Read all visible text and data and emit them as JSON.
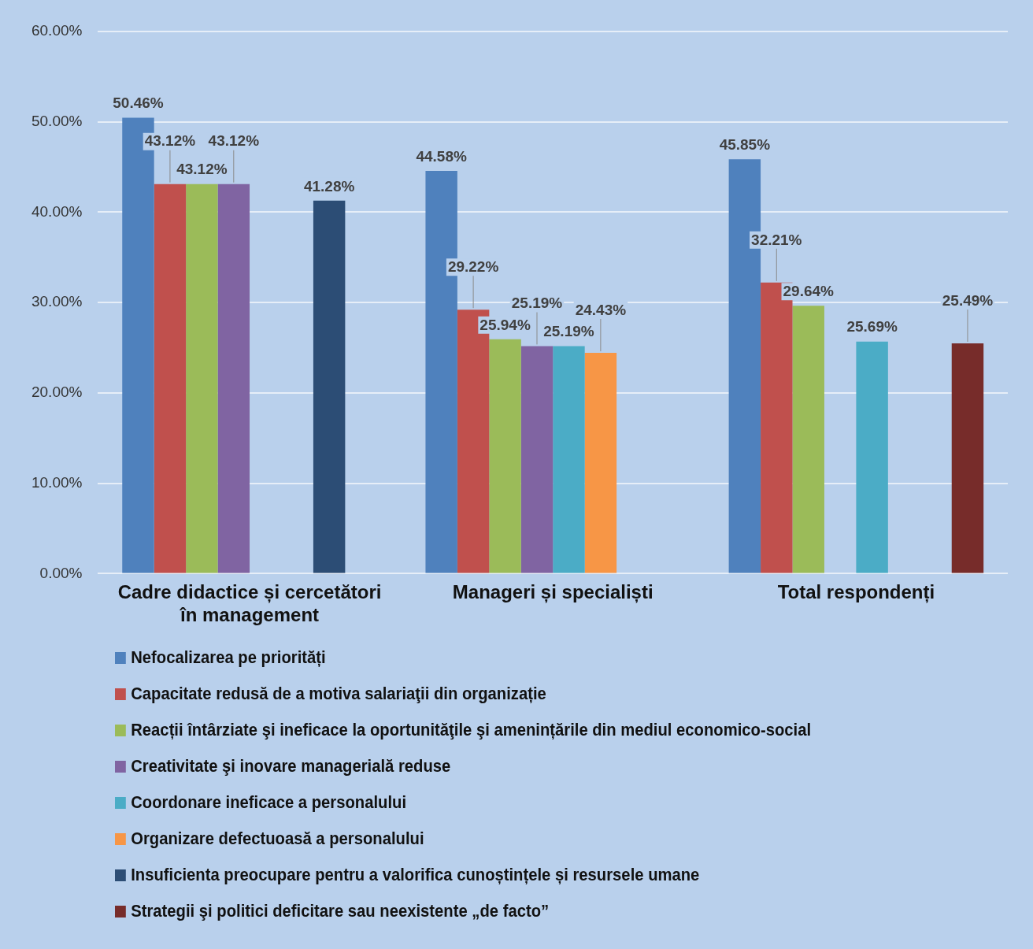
{
  "chart_data": {
    "type": "bar",
    "categories": [
      "Cadre didactice și cercetători în management",
      "Manageri și specialiști",
      "Total respondenți"
    ],
    "series": [
      {
        "name": "Nefocalizarea pe priorități",
        "color": "#4f81bd",
        "values": [
          50.46,
          44.58,
          45.85
        ],
        "value_labels": [
          "50.46%",
          "44.58%",
          "45.85%"
        ]
      },
      {
        "name": "Capacitate redusă de a motiva salariaţii din organizație",
        "color": "#c0504d",
        "values": [
          43.12,
          29.22,
          32.21
        ],
        "value_labels": [
          "43.12%",
          "29.22%",
          "32.21%"
        ]
      },
      {
        "name": "Reacții întârziate şi ineficace la oportunităţile şi amenințările din mediul economico-social",
        "color": "#9bbb59",
        "values": [
          43.12,
          25.94,
          29.64
        ],
        "value_labels": [
          "43.12%",
          "25.94%",
          "29.64%"
        ]
      },
      {
        "name": "Creativitate şi inovare managerială reduse",
        "color": "#8064a2",
        "values": [
          43.12,
          25.19,
          null
        ],
        "value_labels": [
          "43.12%",
          "25.19%",
          null
        ]
      },
      {
        "name": "Coordonare ineficace a personalului",
        "color": "#4bacc6",
        "values": [
          null,
          25.19,
          25.69
        ],
        "value_labels": [
          null,
          "25.19%",
          "25.69%"
        ]
      },
      {
        "name": "Organizare defectuoasă a personalului",
        "color": "#f79646",
        "values": [
          null,
          24.43,
          null
        ],
        "value_labels": [
          null,
          "24.43%",
          null
        ]
      },
      {
        "name": "Insuficienta preocupare pentru a valorifica cunoștințele și resursele umane",
        "color": "#2c4d75",
        "values": [
          41.28,
          null,
          null
        ],
        "value_labels": [
          "41.28%",
          null,
          null
        ]
      },
      {
        "name": "Strategii şi politici deficitare sau neexistente „de facto”",
        "color": "#772c2a",
        "values": [
          null,
          null,
          25.49
        ],
        "value_labels": [
          null,
          null,
          "25.49%"
        ]
      }
    ],
    "ylim": [
      0,
      60
    ],
    "yticks": [
      {
        "value": 0,
        "label": "0.00%"
      },
      {
        "value": 10,
        "label": "10.00%"
      },
      {
        "value": 20,
        "label": "20.00%"
      },
      {
        "value": 30,
        "label": "30.00%"
      },
      {
        "value": 40,
        "label": "40.00%"
      },
      {
        "value": 50,
        "label": "50.00%"
      },
      {
        "value": 60,
        "label": "60.00%"
      }
    ],
    "grid": "y",
    "legend": "bottom"
  }
}
